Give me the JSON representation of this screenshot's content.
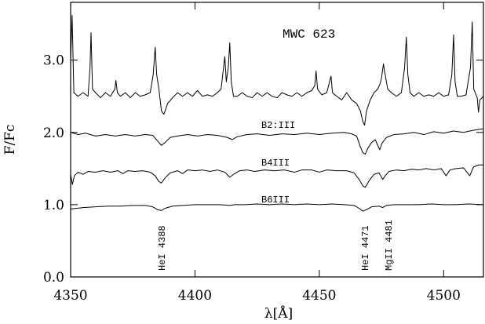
{
  "chart_data": {
    "type": "line",
    "title": "MWC 623",
    "x_label": "λ[Å]",
    "y_label": "F/Fc",
    "xlim": [
      4350,
      4516
    ],
    "ylim": [
      0,
      3.8
    ],
    "xticks": [
      4350,
      4400,
      4450,
      4500
    ],
    "yticks": [
      {
        "value": 0,
        "label": "0.0"
      },
      {
        "value": 1,
        "label": "1.0"
      },
      {
        "value": 2,
        "label": "2.0"
      },
      {
        "value": 3,
        "label": "3.0"
      }
    ],
    "annotations": [
      {
        "text": "HeI 4388"
      },
      {
        "text": "HeI 4471"
      },
      {
        "text": "MgII 4481"
      }
    ],
    "series": [
      {
        "name": "MWC 623",
        "color": "#000000",
        "x": [
          4350,
          4350.6,
          4351.3,
          4353,
          4355,
          4357,
          4357.8,
          4358.2,
          4358.8,
          4360,
          4362,
          4364,
          4366,
          4367.8,
          4368.2,
          4368.8,
          4370,
          4372,
          4374,
          4376,
          4378,
          4380,
          4382,
          4383.2,
          4384,
          4384.6,
          4385.5,
          4386.5,
          4387.5,
          4389,
          4391,
          4393,
          4395,
          4397,
          4399,
          4401,
          4403,
          4405,
          4407,
          4409,
          4410.5,
          4411.5,
          4412,
          4412.6,
          4413.4,
          4414,
          4414.6,
          4415.5,
          4417,
          4419,
          4421,
          4423,
          4425,
          4427,
          4429,
          4431,
          4433,
          4435,
          4437,
          4439,
          4441,
          4443,
          4445,
          4447,
          4448.2,
          4448.7,
          4449.3,
          4451,
          4453,
          4454.7,
          4455.3,
          4457,
          4459,
          4461,
          4463,
          4465,
          4466.5,
          4467.5,
          4468.2,
          4469,
          4470.5,
          4472,
          4473.5,
          4474.5,
          4475,
          4475.8,
          4476.2,
          4476.6,
          4477.5,
          4479,
          4481,
          4483,
          4484.3,
          4485,
          4485.6,
          4486.5,
          4488,
          4490,
          4492,
          4494,
          4496,
          4498,
          4500,
          4502,
          4503.3,
          4504,
          4504.6,
          4505.5,
          4507,
          4509,
          4510.8,
          4511.5,
          4512.1,
          4513.5,
          4514,
          4514.6,
          4516
        ],
        "values": [
          3.0,
          3.62,
          2.55,
          2.5,
          2.55,
          2.5,
          2.9,
          3.38,
          2.6,
          2.55,
          2.48,
          2.55,
          2.5,
          2.6,
          2.72,
          2.55,
          2.5,
          2.55,
          2.48,
          2.55,
          2.5,
          2.52,
          2.55,
          2.8,
          3.18,
          2.8,
          2.6,
          2.3,
          2.25,
          2.4,
          2.48,
          2.55,
          2.5,
          2.55,
          2.5,
          2.58,
          2.5,
          2.52,
          2.5,
          2.55,
          2.6,
          2.9,
          3.05,
          2.7,
          2.9,
          3.24,
          2.7,
          2.5,
          2.5,
          2.55,
          2.5,
          2.48,
          2.55,
          2.5,
          2.55,
          2.5,
          2.48,
          2.55,
          2.52,
          2.5,
          2.55,
          2.5,
          2.55,
          2.58,
          2.65,
          2.85,
          2.6,
          2.52,
          2.55,
          2.78,
          2.55,
          2.5,
          2.45,
          2.55,
          2.45,
          2.4,
          2.3,
          2.15,
          2.1,
          2.3,
          2.45,
          2.55,
          2.6,
          2.68,
          2.75,
          2.95,
          2.85,
          2.78,
          2.6,
          2.55,
          2.5,
          2.55,
          2.9,
          3.32,
          2.8,
          2.55,
          2.5,
          2.55,
          2.5,
          2.52,
          2.5,
          2.55,
          2.5,
          2.52,
          2.8,
          3.35,
          2.7,
          2.5,
          2.5,
          2.52,
          2.9,
          3.53,
          2.6,
          2.48,
          2.28,
          2.45,
          2.5
        ]
      },
      {
        "name": "B2:III",
        "color": "#000000",
        "x": [
          4350,
          4353,
          4356,
          4360,
          4364,
          4368,
          4372,
          4376,
          4380,
          4383,
          4385,
          4386.5,
          4388,
          4390,
          4393,
          4397,
          4401,
          4405,
          4409,
          4413,
          4415,
          4417,
          4421,
          4425,
          4430,
          4435,
          4440,
          4445,
          4450,
          4455,
          4460,
          4463,
          4465,
          4466.5,
          4467.5,
          4468.5,
          4469.5,
          4471,
          4472.5,
          4473.5,
          4474.3,
          4475.2,
          4477,
          4480,
          4484,
          4488,
          4492,
          4496,
          4500,
          4504,
          4508,
          4512,
          4516
        ],
        "values": [
          2.0,
          1.97,
          1.99,
          1.95,
          1.97,
          1.95,
          1.97,
          1.95,
          1.97,
          1.96,
          1.88,
          1.82,
          1.86,
          1.93,
          1.95,
          1.97,
          1.95,
          1.97,
          1.96,
          1.93,
          1.9,
          1.94,
          1.97,
          1.98,
          1.96,
          1.98,
          1.97,
          1.99,
          1.97,
          1.99,
          2.0,
          1.98,
          1.95,
          1.8,
          1.72,
          1.7,
          1.78,
          1.86,
          1.9,
          1.82,
          1.76,
          1.85,
          1.93,
          1.97,
          1.98,
          2.0,
          1.97,
          2.01,
          1.99,
          2.02,
          2.0,
          2.03,
          2.05
        ]
      },
      {
        "name": "B4III",
        "color": "#000000",
        "x": [
          4350,
          4350.7,
          4351.5,
          4353,
          4355,
          4357,
          4360,
          4363,
          4366,
          4369,
          4371,
          4373,
          4376,
          4379,
          4382,
          4384,
          4385.5,
          4386.5,
          4388,
          4390,
          4393,
          4395,
          4397,
          4400,
          4403,
          4406,
          4409,
          4412,
          4414,
          4415.5,
          4418,
          4421,
          4424,
          4428,
          4432,
          4436,
          4440,
          4443,
          4447,
          4450,
          4453,
          4457,
          4461,
          4464,
          4466,
          4467.5,
          4468.5,
          4470,
          4472,
          4474,
          4475.5,
          4476.5,
          4478,
          4481,
          4484,
          4487,
          4490,
          4493,
          4496,
          4499,
          4501,
          4502.5,
          4505,
          4508,
          4510.5,
          4512,
          4514,
          4516
        ],
        "values": [
          1.42,
          1.28,
          1.4,
          1.45,
          1.42,
          1.46,
          1.45,
          1.47,
          1.45,
          1.47,
          1.43,
          1.47,
          1.46,
          1.47,
          1.45,
          1.4,
          1.32,
          1.3,
          1.37,
          1.44,
          1.47,
          1.43,
          1.48,
          1.47,
          1.48,
          1.46,
          1.48,
          1.45,
          1.38,
          1.42,
          1.47,
          1.48,
          1.46,
          1.48,
          1.47,
          1.48,
          1.45,
          1.48,
          1.48,
          1.45,
          1.48,
          1.47,
          1.47,
          1.44,
          1.35,
          1.26,
          1.24,
          1.33,
          1.42,
          1.44,
          1.35,
          1.4,
          1.46,
          1.48,
          1.47,
          1.49,
          1.48,
          1.5,
          1.48,
          1.5,
          1.4,
          1.48,
          1.5,
          1.51,
          1.4,
          1.52,
          1.55,
          1.55
        ]
      },
      {
        "name": "B6III",
        "color": "#000000",
        "x": [
          4350,
          4355,
          4360,
          4365,
          4370,
          4375,
          4380,
          4383,
          4385,
          4386.5,
          4388,
          4391,
          4395,
          4400,
          4405,
          4410,
          4414,
          4416,
          4420,
          4425,
          4430,
          4435,
          4440,
          4445,
          4450,
          4455,
          4460,
          4464,
          4466,
          4467.5,
          4469,
          4471,
          4474,
          4475.5,
          4477,
          4480,
          4485,
          4490,
          4495,
          4500,
          4505,
          4510,
          4516
        ],
        "values": [
          0.94,
          0.96,
          0.97,
          0.98,
          0.98,
          0.99,
          0.99,
          0.97,
          0.93,
          0.92,
          0.95,
          0.98,
          0.99,
          1.0,
          1.0,
          1.0,
          0.99,
          1.0,
          1.0,
          1.01,
          1.0,
          1.01,
          1.0,
          1.01,
          1.0,
          1.01,
          1.0,
          0.99,
          0.95,
          0.91,
          0.93,
          0.97,
          0.98,
          0.96,
          0.99,
          1.0,
          1.0,
          1.0,
          1.01,
          1.0,
          1.0,
          1.01,
          1.0
        ]
      }
    ]
  }
}
